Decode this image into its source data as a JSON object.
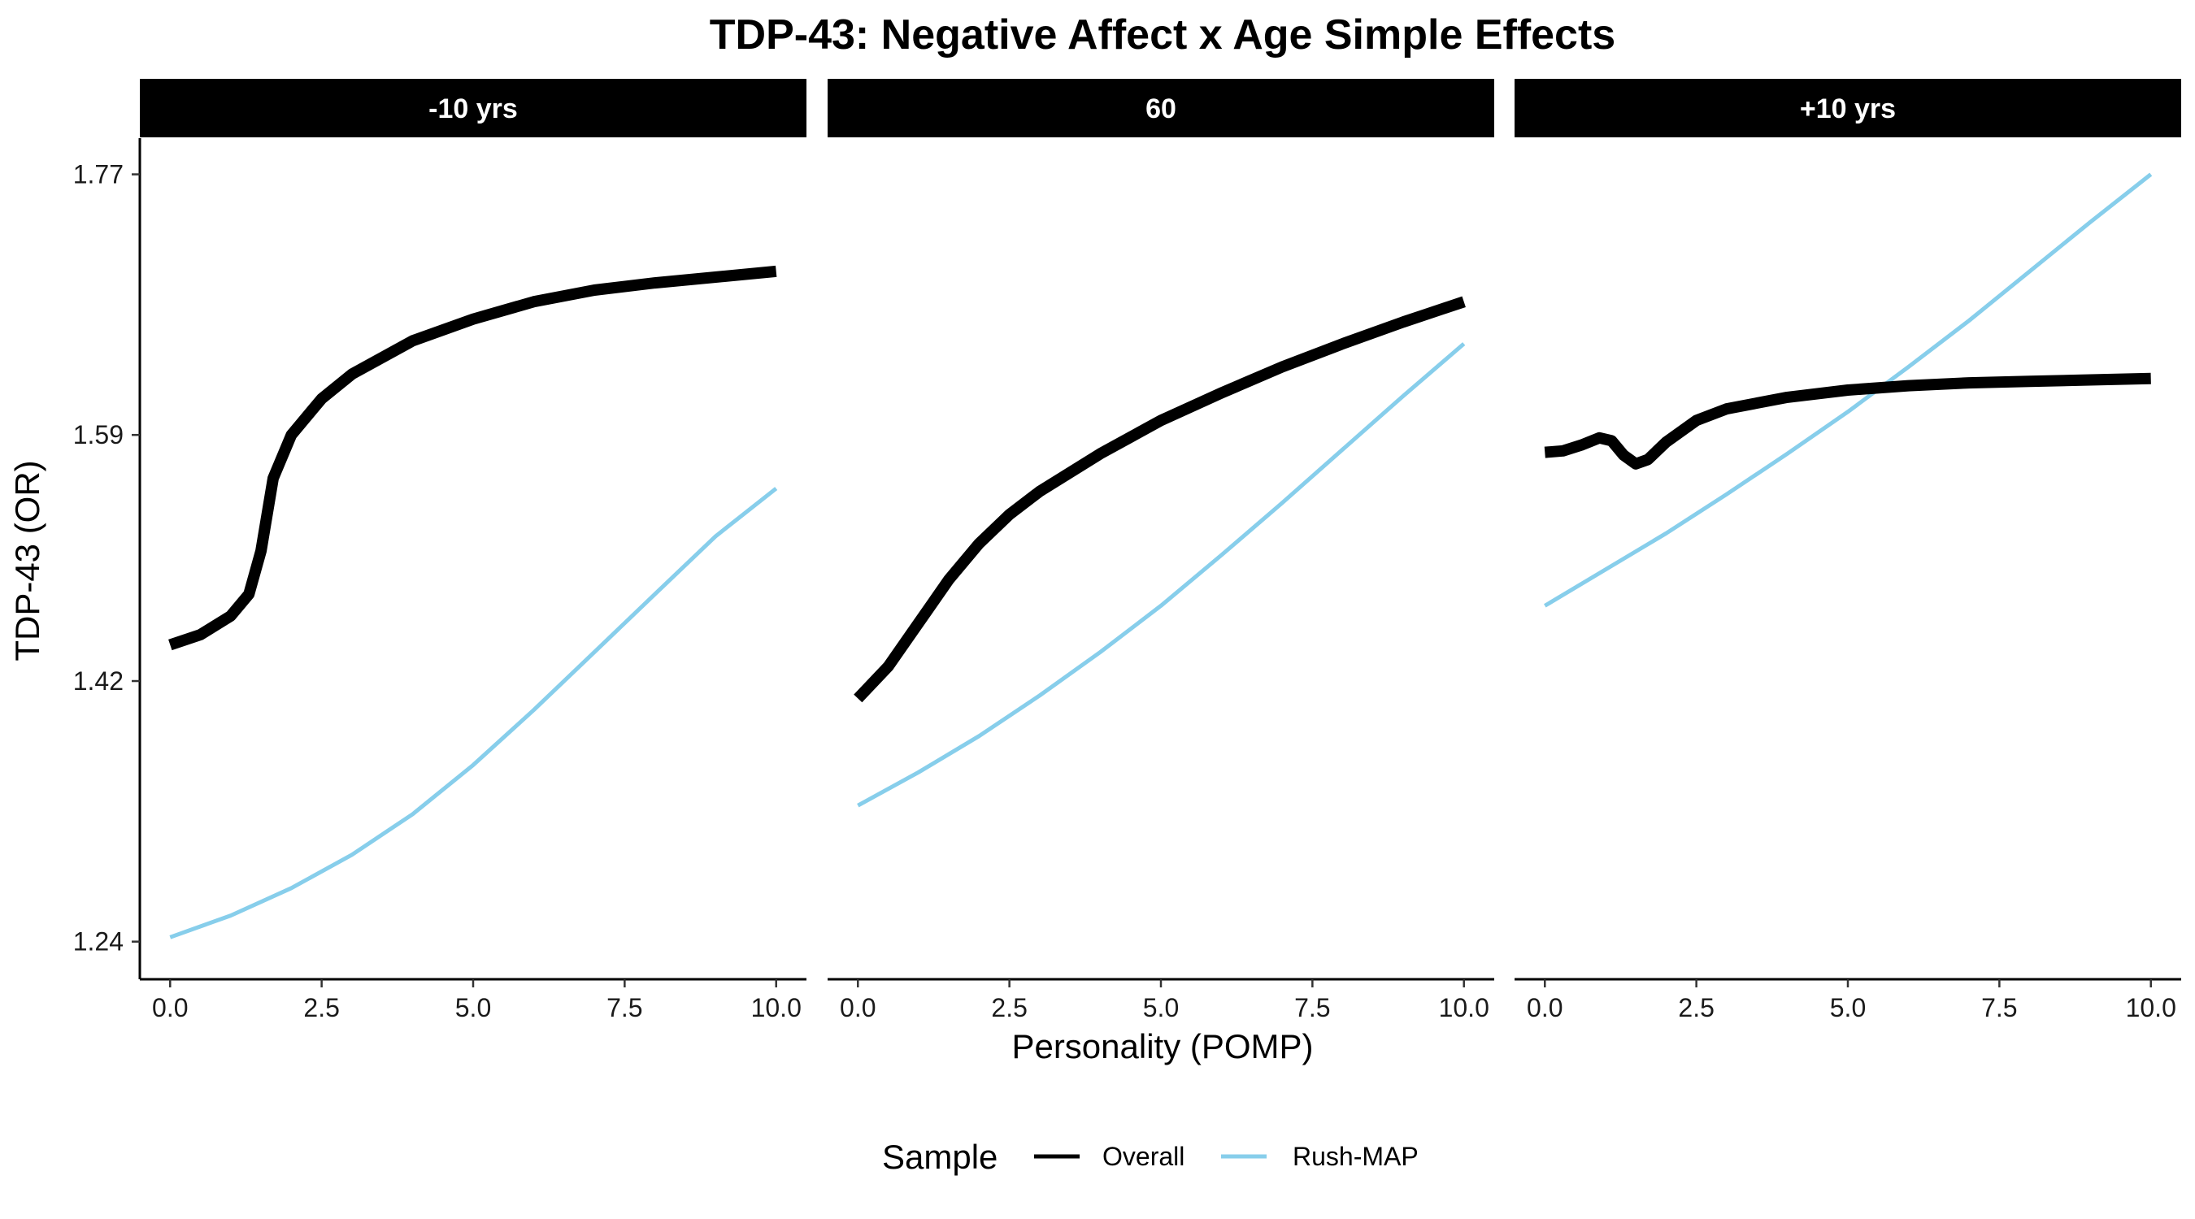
{
  "chart_data": {
    "type": "line",
    "title": "TDP-43: Negative Affect x Age Simple Effects",
    "xlabel": "Personality (POMP)",
    "ylabel": "TDP-43 (OR)",
    "x_ticks": [
      "0.0",
      "2.5",
      "5.0",
      "7.5",
      "10.0"
    ],
    "y_ticks": [
      "1.24",
      "1.42",
      "1.59",
      "1.77"
    ],
    "xlim": [
      -0.5,
      10.5
    ],
    "ylim": [
      1.214,
      1.795
    ],
    "grid": false,
    "legend": {
      "title": "Sample",
      "position": "bottom",
      "entries": [
        {
          "label": "Overall",
          "color": "#000000"
        },
        {
          "label": "Rush-MAP",
          "color": "#87ceeb"
        }
      ]
    },
    "panels": [
      {
        "label": "-10 yrs",
        "series": [
          {
            "name": "Overall",
            "color": "#000000",
            "x": [
              0,
              0.5,
              1.0,
              1.3,
              1.5,
              1.7,
              2.0,
              2.5,
              3.0,
              4.0,
              5.0,
              6.0,
              7.0,
              8.0,
              9.0,
              10.0
            ],
            "y": [
              1.445,
              1.452,
              1.465,
              1.48,
              1.51,
              1.56,
              1.59,
              1.615,
              1.632,
              1.655,
              1.67,
              1.682,
              1.69,
              1.695,
              1.699,
              1.703
            ]
          },
          {
            "name": "Rush-MAP",
            "color": "#87ceeb",
            "x": [
              0,
              1,
              2,
              3,
              4,
              5,
              6,
              7,
              8,
              9,
              10
            ],
            "y": [
              1.243,
              1.258,
              1.277,
              1.3,
              1.328,
              1.362,
              1.4,
              1.44,
              1.48,
              1.52,
              1.553
            ]
          }
        ]
      },
      {
        "label": "60",
        "series": [
          {
            "name": "Overall",
            "color": "#000000",
            "x": [
              0,
              0.5,
              1.0,
              1.5,
              2.0,
              2.5,
              3.0,
              4.0,
              5.0,
              6.0,
              7.0,
              8.0,
              9.0,
              10.0
            ],
            "y": [
              1.408,
              1.43,
              1.46,
              1.49,
              1.515,
              1.535,
              1.551,
              1.577,
              1.6,
              1.619,
              1.637,
              1.653,
              1.668,
              1.682
            ]
          },
          {
            "name": "Rush-MAP",
            "color": "#87ceeb",
            "x": [
              0,
              1,
              2,
              3,
              4,
              5,
              6,
              7,
              8,
              9,
              10
            ],
            "y": [
              1.334,
              1.357,
              1.382,
              1.41,
              1.44,
              1.472,
              1.507,
              1.543,
              1.58,
              1.617,
              1.653
            ]
          }
        ]
      },
      {
        "label": "+10 yrs",
        "series": [
          {
            "name": "Overall",
            "color": "#000000",
            "x": [
              0,
              0.3,
              0.6,
              0.9,
              1.1,
              1.3,
              1.5,
              1.7,
              2.0,
              2.5,
              3.0,
              4.0,
              5.0,
              6.0,
              7.0,
              8.0,
              9.0,
              10.0
            ],
            "y": [
              1.578,
              1.579,
              1.583,
              1.588,
              1.586,
              1.576,
              1.57,
              1.573,
              1.585,
              1.6,
              1.608,
              1.616,
              1.621,
              1.624,
              1.626,
              1.627,
              1.628,
              1.629
            ]
          },
          {
            "name": "Rush-MAP",
            "color": "#87ceeb",
            "x": [
              0,
              1,
              2,
              3,
              4,
              5,
              6,
              7,
              8,
              9,
              10
            ],
            "y": [
              1.472,
              1.497,
              1.522,
              1.549,
              1.577,
              1.606,
              1.637,
              1.669,
              1.703,
              1.737,
              1.77
            ]
          }
        ]
      }
    ]
  }
}
